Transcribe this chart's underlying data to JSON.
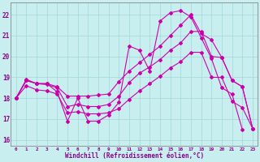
{
  "xlabel": "Windchill (Refroidissement éolien,°C)",
  "xlim": [
    -0.5,
    23.5
  ],
  "ylim": [
    15.7,
    22.6
  ],
  "yticks": [
    16,
    17,
    18,
    19,
    20,
    21,
    22
  ],
  "xticks": [
    0,
    1,
    2,
    3,
    4,
    5,
    6,
    7,
    8,
    9,
    10,
    11,
    12,
    13,
    14,
    15,
    16,
    17,
    18,
    19,
    20,
    21,
    22,
    23
  ],
  "bg_color": "#c8eef0",
  "line_color": "#cc00aa",
  "grid_color": "#a0d8d8",
  "line1_x": [
    0,
    1,
    2,
    3,
    4,
    5,
    6,
    7,
    8,
    9,
    10,
    11,
    12,
    13,
    14,
    15,
    16,
    17,
    18,
    19,
    20,
    21,
    22
  ],
  "line1_y": [
    18.0,
    18.9,
    18.7,
    18.7,
    18.3,
    16.9,
    18.0,
    16.9,
    16.9,
    17.2,
    17.8,
    20.5,
    20.3,
    19.3,
    21.7,
    22.1,
    22.2,
    21.9,
    20.9,
    19.9,
    18.5,
    18.2,
    16.5
  ],
  "line2_x": [
    0,
    1,
    2,
    3,
    4,
    5,
    6,
    7,
    8,
    9,
    10,
    11,
    12,
    13,
    14,
    15,
    16,
    17,
    18,
    19,
    20,
    21,
    22,
    23
  ],
  "line2_y": [
    18.0,
    18.85,
    18.7,
    18.7,
    18.55,
    18.1,
    18.1,
    18.1,
    18.15,
    18.2,
    18.8,
    19.3,
    19.7,
    20.1,
    20.5,
    21.0,
    21.5,
    22.0,
    21.1,
    20.8,
    19.95,
    18.85,
    18.55,
    16.55
  ],
  "line3_x": [
    0,
    1,
    2,
    3,
    4,
    5,
    6,
    7,
    8,
    9,
    10,
    11,
    12,
    13,
    14,
    15,
    16,
    17,
    18,
    19,
    20,
    21,
    22,
    23
  ],
  "line3_y": [
    18.0,
    18.85,
    18.7,
    18.65,
    18.5,
    17.6,
    17.7,
    17.6,
    17.6,
    17.7,
    18.1,
    18.75,
    19.2,
    19.5,
    19.85,
    20.3,
    20.65,
    21.2,
    21.2,
    20.0,
    19.95,
    18.85,
    18.55,
    16.55
  ],
  "line4_x": [
    0,
    1,
    2,
    3,
    4,
    5,
    6,
    7,
    8,
    9,
    10,
    11,
    12,
    13,
    14,
    15,
    16,
    17,
    18,
    19,
    20,
    21,
    22,
    23
  ],
  "line4_y": [
    18.0,
    18.6,
    18.4,
    18.35,
    18.2,
    17.3,
    17.35,
    17.25,
    17.25,
    17.3,
    17.5,
    17.95,
    18.35,
    18.7,
    19.05,
    19.45,
    19.75,
    20.2,
    20.2,
    19.0,
    19.0,
    17.85,
    17.55,
    16.55
  ]
}
